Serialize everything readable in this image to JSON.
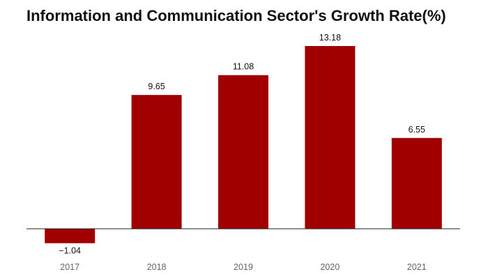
{
  "chart_data": {
    "type": "bar",
    "title": "Information and Communication Sector's Growth Rate(%)",
    "xlabel": "",
    "ylabel": "",
    "categories": [
      "2017",
      "2018",
      "2019",
      "2020",
      "2021"
    ],
    "values": [
      -1.04,
      9.65,
      11.08,
      13.18,
      6.55
    ],
    "value_labels": [
      "−1.04",
      "9.65",
      "11.08",
      "13.18",
      "6.55"
    ],
    "ylim": [
      -1.04,
      13.18
    ],
    "grid": false,
    "legend": "none",
    "colors": {
      "bar": "#a00000",
      "baseline": "#222222",
      "tick_text": "#666666",
      "value_text": "#111111",
      "title_text": "#111111"
    }
  }
}
